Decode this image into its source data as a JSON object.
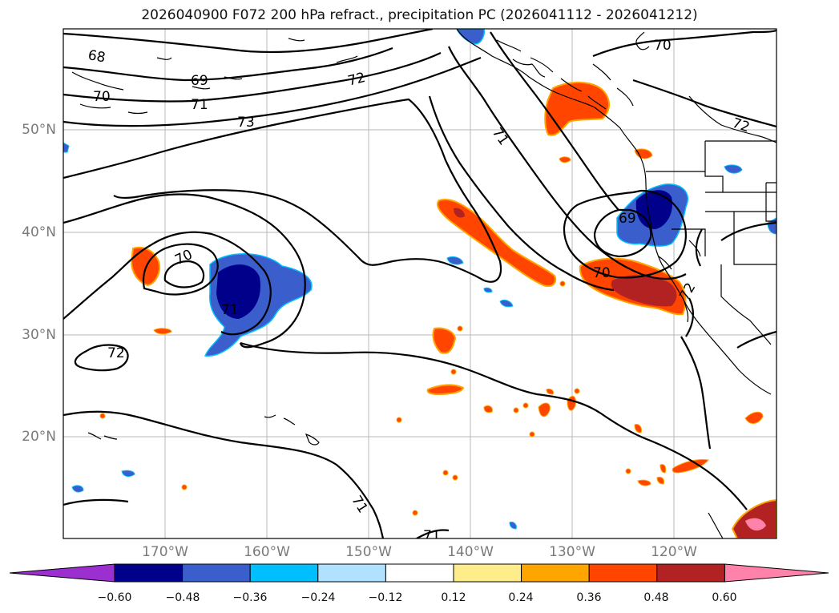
{
  "title": "2026040900 F072 200 hPa refract., precipitation PC (2026041112 - 2026041212)",
  "map": {
    "lat_labels": [
      "50°N",
      "40°N",
      "30°N",
      "20°N"
    ],
    "lon_labels": [
      "170°W",
      "160°W",
      "150°W",
      "140°W",
      "130°W",
      "120°W"
    ],
    "contour_labels": [
      "68",
      "69",
      "70",
      "71",
      "72",
      "73",
      "70",
      "71",
      "72",
      "71",
      "70",
      "69",
      "70",
      "72",
      "71",
      "71",
      "72"
    ]
  },
  "colorbar": {
    "ticks": [
      "−0.60",
      "−0.48",
      "−0.36",
      "−0.24",
      "−0.12",
      "0.12",
      "0.24",
      "0.36",
      "0.48",
      "0.60"
    ],
    "colors": [
      "#9c2fd0",
      "#00008b",
      "#3a5fcd",
      "#00bfff",
      "#b0e2ff",
      "#ffffff",
      "#ffec8b",
      "#ffa500",
      "#ff4500",
      "#b22222",
      "#ff82ab"
    ]
  }
}
